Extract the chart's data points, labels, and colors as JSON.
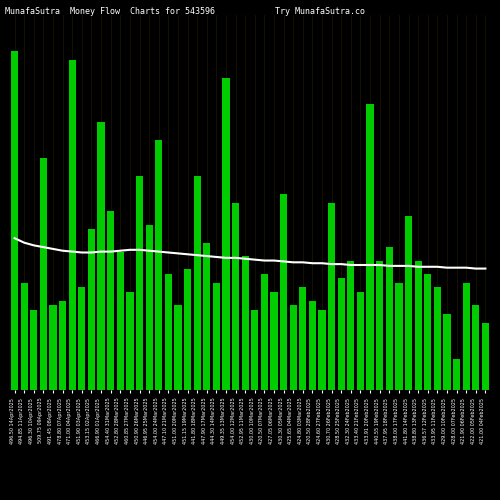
{
  "title_left": "MunafaSutra  Money Flow  Charts for 543596",
  "title_right": "Try MunafaSutra.co",
  "bg_color": "#000000",
  "bar_color_pos": "#00cc00",
  "bar_color_neg": "#cc0000",
  "line_color": "#ffffff",
  "grid_color": "#3a2a00",
  "categories": [
    "496.50 14Apr2025",
    "494.85 11Apr2025",
    "496.30 10Apr2025",
    "509.75 09Apr2025",
    "491.45 08Apr2025",
    "478.80 07Apr2025",
    "471.00 04Apr2025",
    "451.90 03Apr2025",
    "453.15 02Apr2025",
    "466.90 01Apr2025",
    "454.40 31Mar2025",
    "452.80 28Mar2025",
    "460.85 27Mar2025",
    "450.90 26Mar2025",
    "446.95 25Mar2025",
    "454.00 24Mar2025",
    "447.10 21Mar2025",
    "451.00 20Mar2025",
    "451.15 19Mar2025",
    "441.80 18Mar2025",
    "447.90 17Mar2025",
    "444.30 14Mar2025",
    "449.35 13Mar2025",
    "454.00 12Mar2025",
    "452.95 11Mar2025",
    "430.00 10Mar2025",
    "420.50 07Mar2025",
    "427.05 06Mar2025",
    "430.30 05Mar2025",
    "425.65 04Mar2025",
    "424.80 03Mar2025",
    "420.50 28Feb2025",
    "424.60 27Feb2025",
    "430.70 26Feb2025",
    "428.50 25Feb2025",
    "432.30 24Feb2025",
    "433.40 21Feb2025",
    "433.91 20Feb2025",
    "440.55 19Feb2025",
    "437.95 18Feb2025",
    "438.00 17Feb2025",
    "441.80 14Feb2025",
    "438.80 13Feb2025",
    "436.57 12Feb2025",
    "433.95 11Feb2025",
    "429.00 10Feb2025",
    "428.00 07Feb2025",
    "421.90 06Feb2025",
    "422.00 05Feb2025",
    "421.00 04Feb2025"
  ],
  "values": [
    380,
    120,
    90,
    260,
    95,
    100,
    370,
    115,
    180,
    300,
    200,
    155,
    110,
    240,
    185,
    280,
    130,
    95,
    135,
    240,
    165,
    120,
    350,
    210,
    150,
    90,
    130,
    110,
    220,
    95,
    115,
    100,
    90,
    210,
    125,
    145,
    110,
    320,
    145,
    160,
    120,
    195,
    145,
    130,
    115,
    85,
    35,
    120,
    95,
    75
  ],
  "line_values": [
    170,
    165,
    162,
    160,
    158,
    156,
    155,
    154,
    154,
    155,
    155,
    156,
    157,
    157,
    156,
    155,
    154,
    153,
    152,
    151,
    150,
    149,
    148,
    148,
    147,
    146,
    145,
    145,
    144,
    143,
    143,
    142,
    142,
    141,
    141,
    140,
    140,
    140,
    140,
    139,
    139,
    139,
    138,
    138,
    138,
    137,
    137,
    137,
    136,
    136
  ],
  "figsize": [
    5.0,
    5.0
  ],
  "dpi": 100
}
